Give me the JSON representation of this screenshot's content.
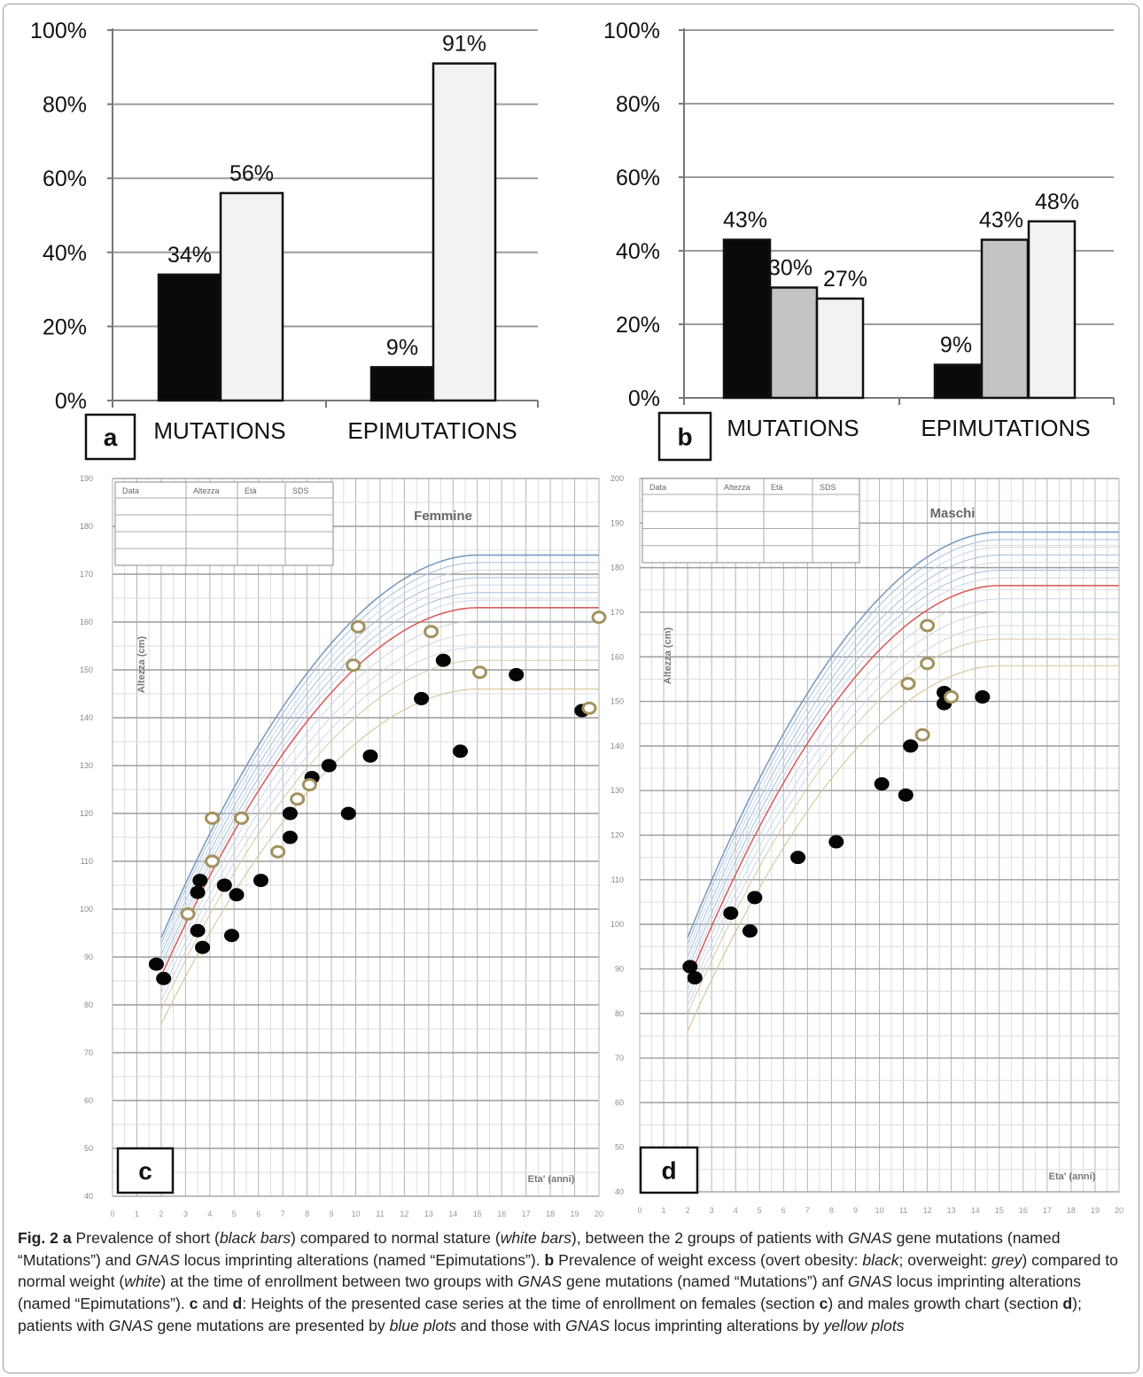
{
  "chart_data": [
    {
      "panel": "a",
      "type": "bar",
      "categories": [
        "MUTATIONS",
        "EPIMUTATIONS"
      ],
      "series": [
        {
          "values": [
            34,
            9
          ],
          "labels": [
            "34%",
            "9%"
          ],
          "color": "#0a0a0a"
        },
        {
          "values": [
            56,
            91
          ],
          "labels": [
            "56%",
            "91%"
          ],
          "color": "#f2f2f2"
        }
      ],
      "yticks": [
        "0%",
        "20%",
        "40%",
        "60%",
        "80%",
        "100%"
      ],
      "ylim": [
        0,
        100
      ],
      "grid": true
    },
    {
      "panel": "b",
      "type": "bar",
      "categories": [
        "MUTATIONS",
        "EPIMUTATIONS"
      ],
      "series": [
        {
          "values": [
            43,
            9
          ],
          "labels": [
            "43%",
            "9%"
          ],
          "color": "#0a0a0a"
        },
        {
          "values": [
            30,
            43
          ],
          "labels": [
            "30%",
            "43%"
          ],
          "color": "#c4c4c4"
        },
        {
          "values": [
            27,
            48
          ],
          "labels": [
            "27%",
            "48%"
          ],
          "color": "#f2f2f2"
        }
      ],
      "yticks": [
        "0%",
        "20%",
        "40%",
        "60%",
        "80%",
        "100%"
      ],
      "ylim": [
        0,
        100
      ],
      "grid": true
    },
    {
      "panel": "c",
      "type": "scatter",
      "title": "Femmine",
      "ylabel": "Altezza (cm)",
      "xlabel": "Eta' (anni)",
      "xlim": [
        0,
        20
      ],
      "ylim": [
        40,
        190
      ],
      "xticks": [
        "0",
        "1",
        "2",
        "3",
        "4",
        "5",
        "6",
        "7",
        "8",
        "9",
        "10",
        "11",
        "12",
        "13",
        "14",
        "15",
        "16",
        "17",
        "18",
        "19",
        "20"
      ],
      "yticks": [
        "40",
        "50",
        "60",
        "70",
        "80",
        "90",
        "100",
        "110",
        "120",
        "130",
        "140",
        "150",
        "160",
        "170",
        "180",
        "190"
      ],
      "table_headers": [
        "Data",
        "Altezza",
        "Età",
        "SDS"
      ],
      "series": [
        {
          "marker": "filled",
          "points": [
            [
              1.8,
              88.5
            ],
            [
              2.1,
              85.5
            ],
            [
              3.5,
              103.5
            ],
            [
              3.6,
              106
            ],
            [
              3.5,
              95.5
            ],
            [
              3.7,
              92
            ],
            [
              4.6,
              105
            ],
            [
              5.1,
              103
            ],
            [
              4.9,
              94.5
            ],
            [
              6.1,
              106
            ],
            [
              7.3,
              120
            ],
            [
              7.3,
              115
            ],
            [
              8.2,
              127.5
            ],
            [
              8.9,
              130
            ],
            [
              9.7,
              120
            ],
            [
              10.6,
              132
            ],
            [
              12.7,
              144
            ],
            [
              13.6,
              152
            ],
            [
              14.3,
              133
            ],
            [
              16.6,
              149
            ],
            [
              19.3,
              141.5
            ]
          ]
        },
        {
          "marker": "ring",
          "points": [
            [
              3.1,
              99
            ],
            [
              4.1,
              119
            ],
            [
              4.1,
              110
            ],
            [
              5.3,
              119
            ],
            [
              6.8,
              112
            ],
            [
              7.6,
              123
            ],
            [
              8.1,
              126
            ],
            [
              9.9,
              151
            ],
            [
              10.1,
              159
            ],
            [
              13.1,
              158
            ],
            [
              15.1,
              149.5
            ],
            [
              19.6,
              142
            ],
            [
              20,
              161
            ]
          ]
        }
      ],
      "percentile_colors": [
        "#7a9cc4",
        "#a7bedc",
        "#c9d8ea",
        "#d95f5f",
        "#d9c9a0"
      ]
    },
    {
      "panel": "d",
      "type": "scatter",
      "title": "Maschi",
      "ylabel": "Altezza (cm)",
      "xlabel": "Eta' (anni)",
      "xlim": [
        0,
        20
      ],
      "ylim": [
        40,
        200
      ],
      "xticks": [
        "0",
        "1",
        "2",
        "3",
        "4",
        "5",
        "6",
        "7",
        "8",
        "9",
        "10",
        "11",
        "12",
        "13",
        "14",
        "15",
        "16",
        "17",
        "18",
        "19",
        "20"
      ],
      "yticks": [
        "40",
        "50",
        "60",
        "70",
        "80",
        "90",
        "100",
        "110",
        "120",
        "130",
        "140",
        "150",
        "160",
        "170",
        "180",
        "190",
        "200"
      ],
      "table_headers": [
        "Data",
        "Altezza",
        "Età",
        "SDS"
      ],
      "series": [
        {
          "marker": "filled",
          "points": [
            [
              2.1,
              90.5
            ],
            [
              2.3,
              88
            ],
            [
              3.8,
              102.5
            ],
            [
              4.6,
              98.5
            ],
            [
              4.8,
              106
            ],
            [
              6.6,
              115
            ],
            [
              8.2,
              118.5
            ],
            [
              10.1,
              131.5
            ],
            [
              11.1,
              129
            ],
            [
              11.3,
              140
            ],
            [
              12.7,
              152
            ],
            [
              12.7,
              149.5
            ],
            [
              14.3,
              151
            ]
          ]
        },
        {
          "marker": "ring",
          "points": [
            [
              11.2,
              154
            ],
            [
              11.8,
              142.5
            ],
            [
              12,
              167
            ],
            [
              12,
              158.5
            ],
            [
              13,
              151
            ]
          ]
        }
      ],
      "percentile_colors": [
        "#7a9cc4",
        "#a7bedc",
        "#c9d8ea",
        "#d95f5f",
        "#d9c9a0"
      ]
    }
  ],
  "panel_labels": {
    "a": "a",
    "b": "b",
    "c": "c",
    "d": "d"
  },
  "caption": {
    "fig_label": "Fig. 2",
    "a_letter": "a",
    "a_1": " Prevalence of short (",
    "a_black_bars": "black bars",
    "a_2": ") compared to normal stature (",
    "a_white_bars": "white bars",
    "a_3": "), between the 2 groups of patients with ",
    "gnas": "GNAS",
    "a_4": " gene mutations (named “Mutations”) and ",
    "a_5": " locus imprinting alterations (named “Epimutations”). ",
    "b_letter": "b",
    "b_1": " Prevalence of weight excess (overt obesity: ",
    "b_black": "black",
    "b_2": "; overweight: ",
    "b_grey": "grey",
    "b_3": ") compared to normal weight (",
    "b_white": "white",
    "b_4": ") at the time of enrollment between two groups with ",
    "b_5": " gene mutations (named “Mutations”) anf ",
    "b_6": " locus imprinting alterations (named “Epimutations”). ",
    "c_letter": "c",
    "cd_and": " and ",
    "d_letter": "d",
    "cd_1": ": Heights of the presented case series at the time of enrollment on females (section ",
    "cd_2": ") and males growth chart (section ",
    "cd_3": "); patients with ",
    "cd_4": " gene mutations are presented by ",
    "blue_plots": "blue plots",
    "cd_5": " and those with ",
    "cd_6": " locus imprinting alterations by ",
    "yellow_plots": "yellow plots"
  }
}
